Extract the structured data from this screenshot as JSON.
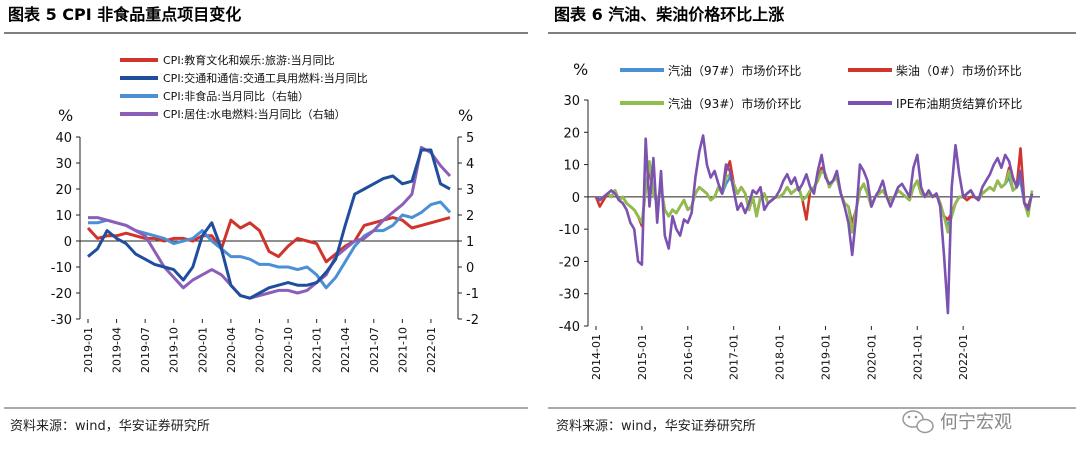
{
  "left": {
    "title": "图表 5 CPI 非食品重点项目变化",
    "source": "资料来源：wind，华安证券研究所"
  },
  "right": {
    "title": "图表 6  汽油、柴油价格环比上涨",
    "source": "资料来源：wind，华安证券研究所"
  },
  "watermark": "何宁宏观",
  "chart_data": [
    {
      "type": "line",
      "title": "图表 5 CPI 非食品重点项目变化",
      "ylabel_left": "%",
      "ylabel_right": "%",
      "ylim_left": [
        -30,
        40
      ],
      "ylim_right": [
        -2,
        5
      ],
      "yticks_left": [
        "40",
        "30",
        "20",
        "10",
        "0",
        "-10",
        "-20",
        "-30"
      ],
      "yticks_right": [
        "5",
        "4",
        "3",
        "2",
        "1",
        "0",
        "-1",
        "-2"
      ],
      "xticks": [
        "2019-01",
        "2019-04",
        "2019-07",
        "2019-10",
        "2020-01",
        "2020-04",
        "2020-07",
        "2020-10",
        "2021-01",
        "2021-04",
        "2021-07",
        "2021-10",
        "2022-01"
      ],
      "x_start": "2019-01",
      "series": [
        {
          "name": "CPI:教育文化和娱乐:旅游:当月同比",
          "axis": "left",
          "color": "#d0342c",
          "values": [
            5,
            1,
            2,
            2,
            3,
            2,
            1,
            1,
            0,
            1,
            1,
            0,
            2,
            2,
            -3,
            8,
            5,
            7,
            4,
            -4,
            -6,
            -2,
            1,
            0,
            -1,
            -8,
            -5,
            -2,
            0,
            6,
            7,
            8,
            9,
            8,
            5,
            6,
            7,
            8,
            9
          ]
        },
        {
          "name": "CPI:交通和通信:交通工具用燃料:当月同比",
          "axis": "left",
          "color": "#1f4e9c",
          "values": [
            -6,
            -3,
            4,
            1,
            -1,
            -5,
            -7,
            -9,
            -10,
            -11,
            -15,
            -10,
            2,
            7,
            -3,
            -17,
            -21,
            -22,
            -20,
            -18,
            -17,
            -16,
            -17,
            -17,
            -16,
            -12,
            -7,
            6,
            18,
            20,
            22,
            24,
            25,
            22,
            23,
            35,
            35,
            22,
            20
          ]
        },
        {
          "name": "CPI:非食品:当月同比（右轴）",
          "axis": "right",
          "color": "#4b8fd6",
          "values": [
            1.7,
            1.7,
            1.8,
            1.7,
            1.6,
            1.4,
            1.3,
            1.2,
            1.1,
            0.9,
            1.0,
            1.1,
            1.4,
            1.0,
            0.7,
            0.4,
            0.4,
            0.3,
            0.1,
            0.1,
            0.0,
            0.0,
            -0.1,
            0.0,
            -0.3,
            -0.8,
            -0.4,
            0.2,
            0.8,
            1.2,
            1.4,
            1.4,
            1.6,
            2.0,
            1.9,
            2.1,
            2.4,
            2.5,
            2.1
          ]
        },
        {
          "name": "CPI:居住:水电燃料:当月同比（右轴）",
          "axis": "right",
          "color": "#8b5fb8",
          "values": [
            1.9,
            1.9,
            1.8,
            1.7,
            1.6,
            1.4,
            1.2,
            0.6,
            0.0,
            -0.4,
            -0.8,
            -0.5,
            -0.3,
            -0.1,
            -0.3,
            -0.7,
            -1.1,
            -1.2,
            -1.1,
            -1.0,
            -0.9,
            -0.9,
            -1.0,
            -0.9,
            -0.6,
            -0.3,
            0.4,
            0.7,
            1.0,
            1.1,
            1.4,
            1.8,
            2.1,
            2.4,
            2.8,
            4.6,
            4.4,
            3.9,
            3.5
          ]
        }
      ]
    },
    {
      "type": "line",
      "title": "图表 6  汽油、柴油价格环比上涨",
      "ylabel": "%",
      "ylim": [
        -40,
        30
      ],
      "yticks": [
        "30",
        "20",
        "10",
        "0",
        "-10",
        "-20",
        "-30",
        "-40"
      ],
      "xticks": [
        "2014-01",
        "2015-01",
        "2016-01",
        "2017-01",
        "2018-01",
        "2019-01",
        "2020-01",
        "2021-01",
        "2022-01"
      ],
      "x_start": "2014-01",
      "series": [
        {
          "name": "汽油（97#）市场价环比",
          "color": "#4b8fd6",
          "values": [
            0,
            -1,
            0,
            1,
            0,
            2,
            -1,
            0,
            -2,
            -3,
            -4,
            -6,
            -8,
            2,
            8,
            1,
            -2,
            3,
            -4,
            -6,
            -4,
            -5,
            -3,
            -1,
            -4,
            -3,
            1,
            3,
            2,
            1,
            -1,
            0,
            3,
            1,
            4,
            6,
            4,
            1,
            3,
            1,
            -4,
            0,
            -6,
            0,
            1,
            -2,
            -1,
            0,
            0,
            1,
            3,
            1,
            2,
            3,
            -1,
            0,
            2,
            3,
            5,
            8,
            7,
            3,
            5,
            6,
            1,
            -2,
            -3,
            -8,
            -4,
            2,
            4,
            1,
            -3,
            0,
            1,
            2,
            0,
            -1,
            0,
            2,
            1,
            0,
            -1,
            3,
            5,
            1,
            0,
            1,
            0,
            1,
            -2,
            -6,
            -9,
            -6,
            -2,
            0,
            0,
            1,
            2,
            0,
            -1,
            1,
            2,
            3,
            2,
            5,
            3,
            4,
            6,
            2,
            3,
            5,
            -2,
            -4,
            1
          ]
        },
        {
          "name": "柴油（0#）市场价环比",
          "color": "#d0342c",
          "values": [
            0,
            -3,
            -1,
            1,
            0,
            2,
            -1,
            0,
            -2,
            -3,
            -4,
            -6,
            -9,
            3,
            9,
            1,
            -2,
            3,
            -4,
            -6,
            -4,
            -5,
            -3,
            -1,
            -4,
            -3,
            1,
            3,
            2,
            1,
            -1,
            0,
            3,
            1,
            8,
            11,
            4,
            1,
            3,
            1,
            -4,
            0,
            -6,
            0,
            1,
            -2,
            -1,
            0,
            0,
            1,
            3,
            1,
            2,
            3,
            -1,
            -7,
            2,
            3,
            5,
            9,
            7,
            3,
            5,
            6,
            1,
            -2,
            -3,
            -9,
            -4,
            2,
            4,
            1,
            -3,
            0,
            1,
            2,
            0,
            -1,
            0,
            2,
            1,
            0,
            -1,
            3,
            5,
            1,
            0,
            1,
            0,
            1,
            -2,
            -6,
            -7,
            -5,
            -2,
            0,
            0,
            -1,
            0,
            0,
            -1,
            1,
            2,
            3,
            2,
            5,
            3,
            4,
            9,
            2,
            3,
            15,
            -2,
            -3,
            1
          ]
        },
        {
          "name": "汽油（93#）市场价环比",
          "color": "#8fbf4a",
          "values": [
            0,
            -1,
            0,
            1,
            0,
            2,
            -1,
            0,
            -2,
            -3,
            -4,
            -6,
            -8,
            2,
            11,
            1,
            -2,
            3,
            -4,
            -6,
            -4,
            -5,
            -3,
            -1,
            -4,
            -3,
            1,
            3,
            2,
            1,
            -1,
            0,
            3,
            1,
            6,
            7,
            4,
            1,
            3,
            1,
            -4,
            0,
            -6,
            0,
            1,
            -2,
            -1,
            0,
            0,
            1,
            3,
            1,
            2,
            3,
            -1,
            0,
            2,
            3,
            5,
            8,
            7,
            3,
            5,
            6,
            1,
            -2,
            -3,
            -11,
            -4,
            2,
            4,
            1,
            -3,
            0,
            1,
            2,
            0,
            -1,
            0,
            2,
            1,
            0,
            -1,
            3,
            5,
            1,
            0,
            1,
            0,
            1,
            -2,
            -6,
            -11,
            -6,
            -2,
            0,
            0,
            1,
            2,
            0,
            -1,
            1,
            2,
            3,
            2,
            5,
            3,
            4,
            8,
            2,
            3,
            8,
            -2,
            -6,
            2
          ]
        },
        {
          "name": "IPE布油期货结算价环比",
          "color": "#7b52b0",
          "values": [
            0,
            -1,
            0,
            1,
            2,
            1,
            -1,
            -2,
            -4,
            -8,
            -10,
            -20,
            -21,
            18,
            -3,
            12,
            -8,
            8,
            -12,
            -16,
            -6,
            -10,
            -12,
            -7,
            -8,
            -5,
            6,
            14,
            19,
            10,
            6,
            8,
            4,
            1,
            10,
            8,
            2,
            -4,
            -2,
            -5,
            -2,
            2,
            1,
            3,
            -4,
            -2,
            -1,
            0,
            2,
            5,
            7,
            4,
            6,
            2,
            4,
            7,
            3,
            1,
            8,
            13,
            6,
            4,
            5,
            8,
            1,
            -3,
            -8,
            -18,
            -6,
            10,
            8,
            5,
            -3,
            0,
            2,
            5,
            0,
            -3,
            0,
            3,
            4,
            2,
            0,
            9,
            13,
            3,
            0,
            2,
            0,
            1,
            -3,
            -18,
            -36,
            3,
            16,
            7,
            0,
            1,
            2,
            0,
            -1,
            3,
            5,
            7,
            10,
            12,
            9,
            13,
            11,
            6,
            3,
            8,
            -2,
            -4,
            1
          ]
        }
      ]
    }
  ]
}
